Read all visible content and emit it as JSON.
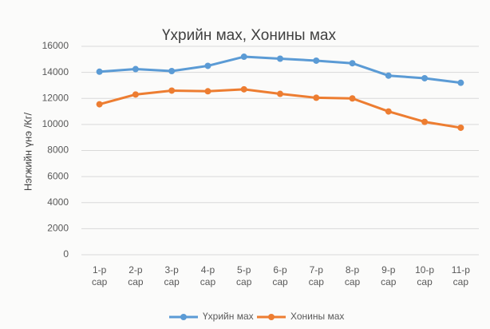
{
  "chart_data": {
    "type": "line",
    "title": "Үхрийн мах, Хонины мах",
    "y_label": "Нэгжийн үнэ /Кг/",
    "categories": [
      "1-р сар",
      "2-р сар",
      "3-р сар",
      "4-р сар",
      "5-р сар",
      "6-р сар",
      "7-р сар",
      "8-р сар",
      "9-р сар",
      "10-р сар",
      "11-р сар"
    ],
    "series": [
      {
        "name": "Үхрийн мах",
        "color": "#5b9bd5",
        "values": [
          14050,
          14250,
          14100,
          14500,
          15200,
          15050,
          14900,
          14700,
          13750,
          13550,
          13200
        ]
      },
      {
        "name": "Хонины мах",
        "color": "#ed7d31",
        "values": [
          11550,
          12300,
          12600,
          12550,
          12700,
          12350,
          12050,
          12000,
          11000,
          10200,
          9750
        ]
      }
    ],
    "ylim": [
      0,
      16000
    ],
    "yticks": [
      0,
      2000,
      4000,
      6000,
      8000,
      10000,
      12000,
      14000,
      16000
    ],
    "grid": true,
    "legend": "bottom"
  }
}
